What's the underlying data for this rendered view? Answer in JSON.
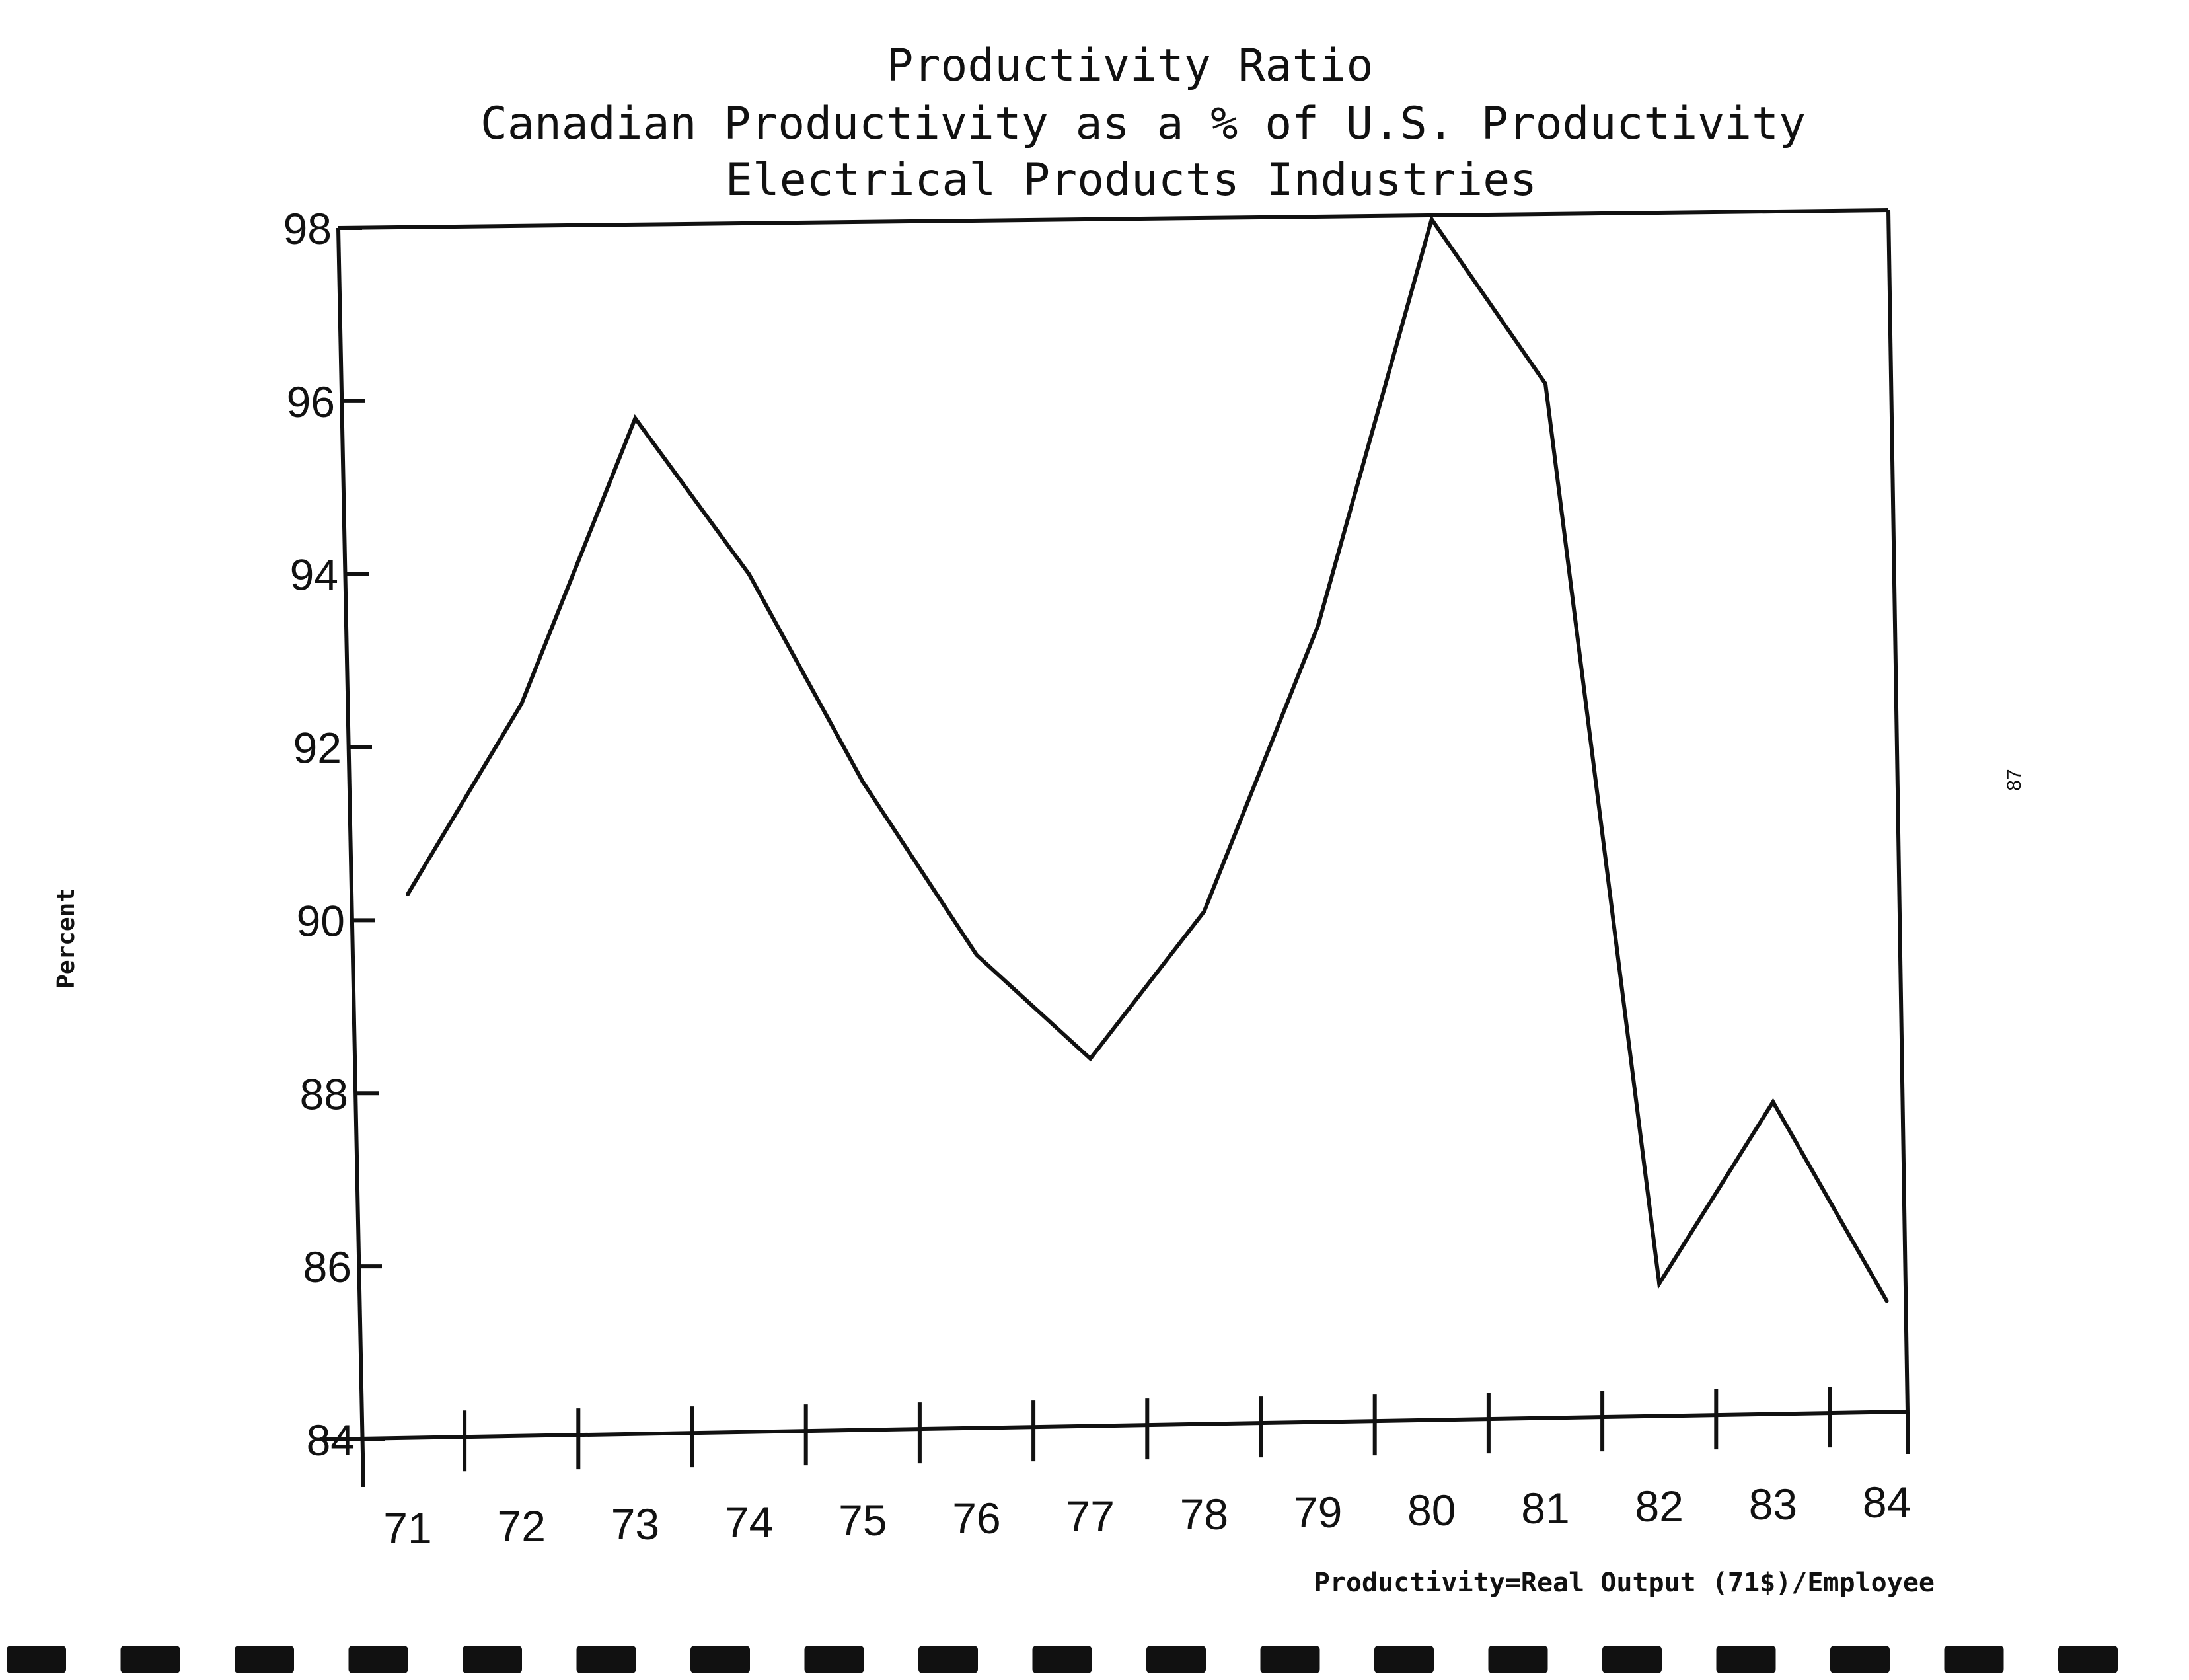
{
  "chart_data": {
    "type": "line",
    "title": "Productivity Ratio",
    "subtitle_lines": [
      "Canadian Productivity as a % of U.S. Productivity",
      "Electrical Products Industries"
    ],
    "ylabel": "Percent",
    "xlabel": "Productivity=Real Output (71$)/Employee",
    "ylim": [
      84,
      98
    ],
    "yticks": [
      84,
      86,
      88,
      90,
      92,
      94,
      96,
      98
    ],
    "ytick_labels": [
      "84",
      "86",
      "88",
      "90",
      "92",
      "94",
      "96",
      "98"
    ],
    "categories": [
      "71",
      "72",
      "73",
      "74",
      "75",
      "76",
      "77",
      "78",
      "79",
      "80",
      "81",
      "82",
      "83",
      "84"
    ],
    "series": [
      {
        "values": [
          90.3,
          92.5,
          95.8,
          94.0,
          91.6,
          89.6,
          88.4,
          90.1,
          93.4,
          98.1,
          96.2,
          85.8,
          87.9,
          85.6
        ]
      }
    ],
    "grid": false,
    "legend": "none"
  },
  "page_number": "87"
}
